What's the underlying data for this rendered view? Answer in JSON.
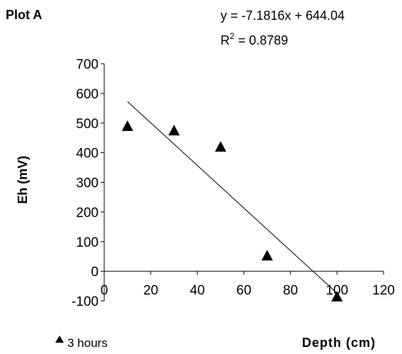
{
  "chart_data": {
    "type": "scatter",
    "title": "Plot A",
    "xlabel": "Depth (cm)",
    "ylabel": "Eh (mV)",
    "xlim": [
      0,
      120
    ],
    "ylim": [
      -100,
      700
    ],
    "xticks": [
      "0",
      "20",
      "40",
      "60",
      "80",
      "100",
      "120"
    ],
    "yticks": [
      "-100",
      "0",
      "100",
      "200",
      "300",
      "400",
      "500",
      "600",
      "700"
    ],
    "series": [
      {
        "name": "3 hours",
        "marker": "triangle",
        "color": "#000000",
        "points": [
          {
            "x": 10,
            "y": 490
          },
          {
            "x": 30,
            "y": 475
          },
          {
            "x": 50,
            "y": 420
          },
          {
            "x": 70,
            "y": 53
          },
          {
            "x": 100,
            "y": -85
          }
        ]
      }
    ],
    "trendline": {
      "slope": -7.1816,
      "intercept": 644.04,
      "x_range": [
        10,
        100
      ],
      "equation_label": "y = -7.1816x + 644.04",
      "r2_prefix": "R",
      "r2_sup": "2",
      "r2_value": " = 0.8789"
    },
    "grid": false,
    "legend_position": "bottom-left"
  }
}
